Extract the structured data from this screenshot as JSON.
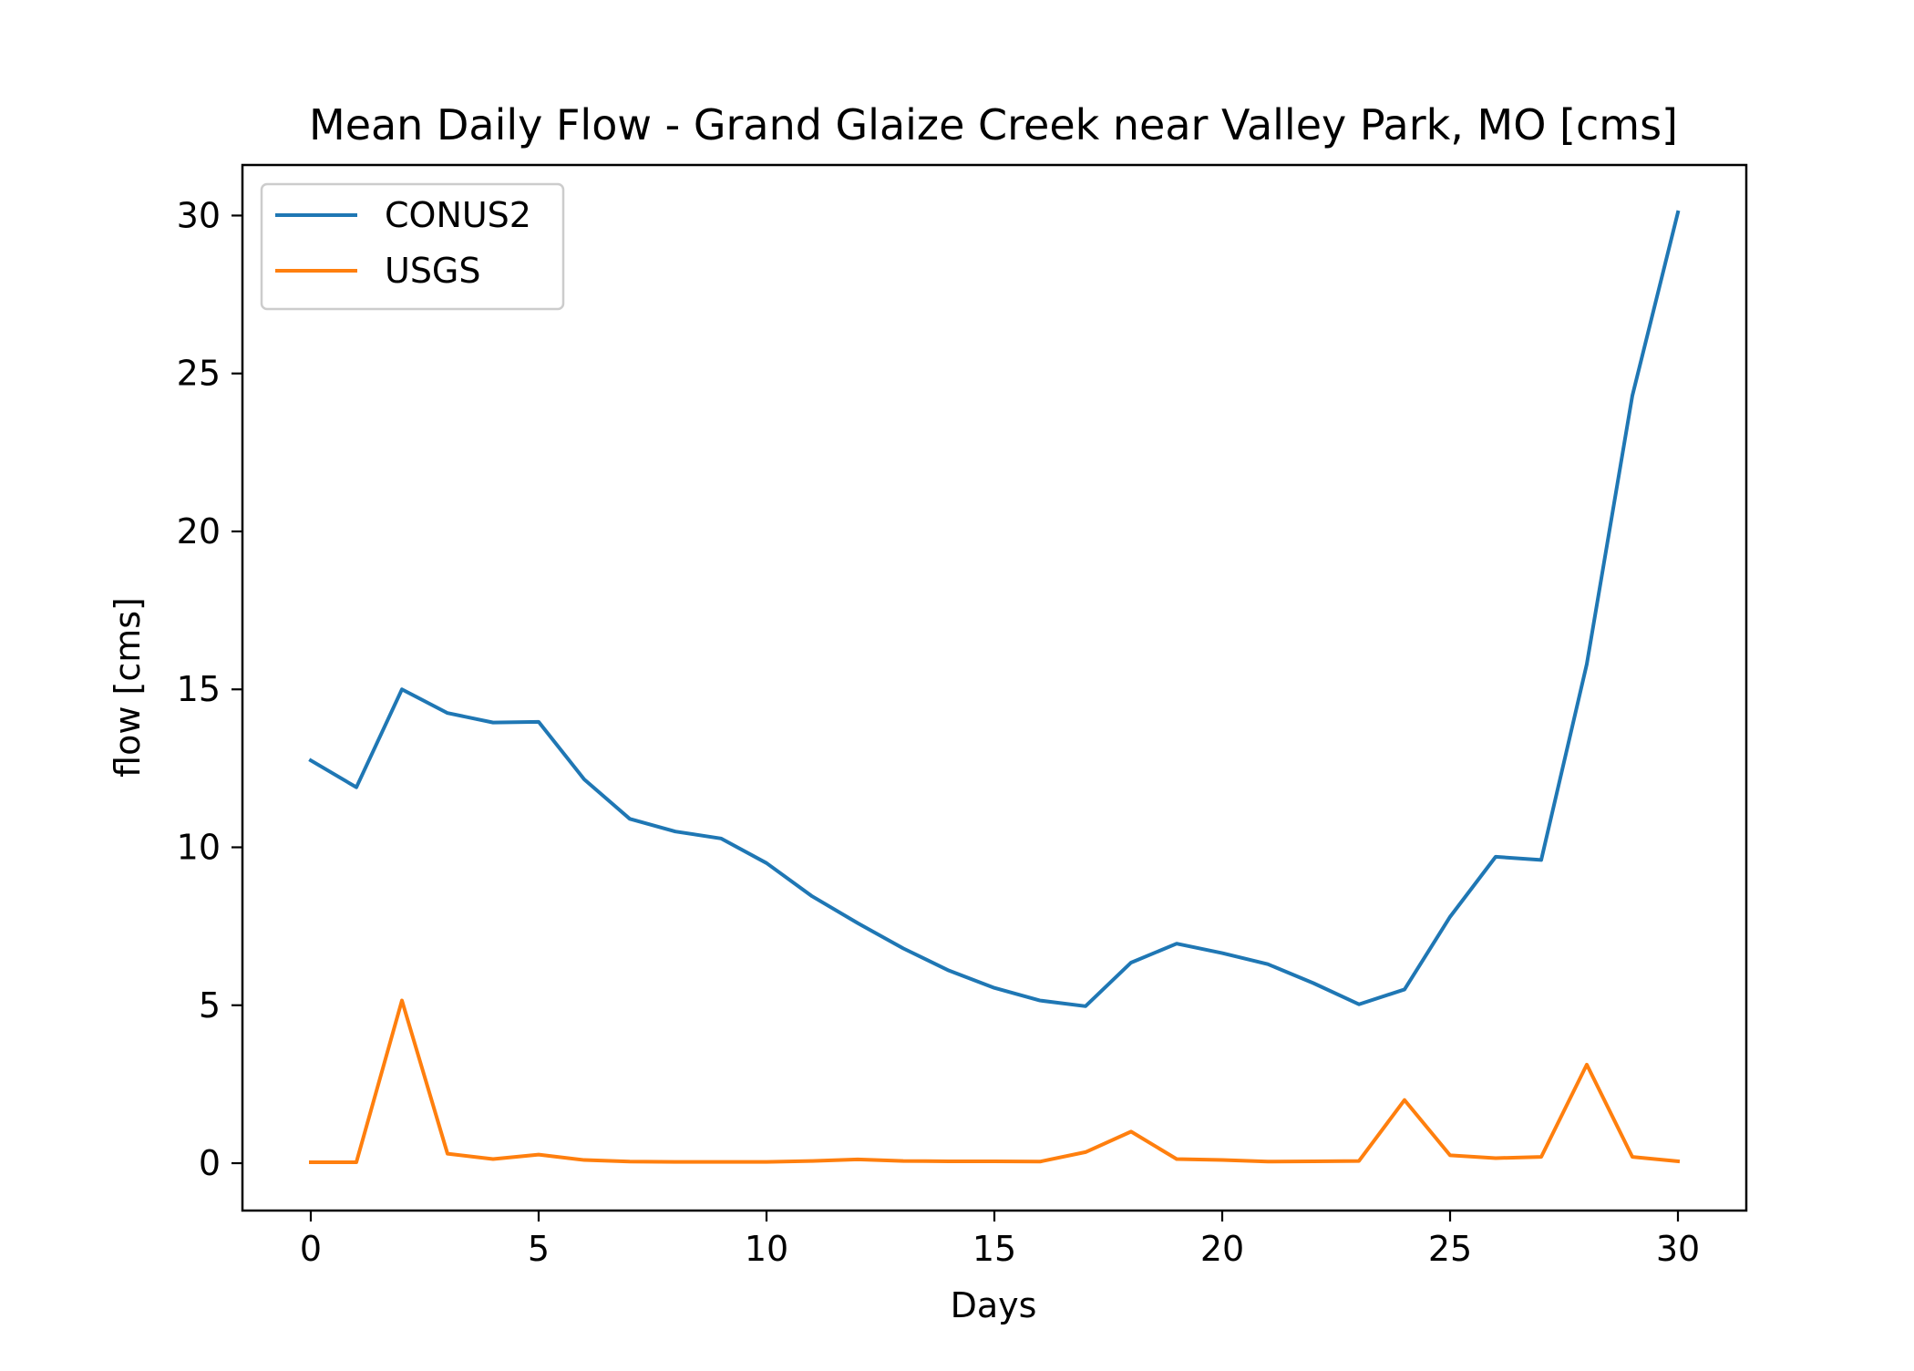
{
  "chart_data": {
    "type": "line",
    "title": "Mean Daily Flow - Grand Glaize Creek near Valley Park, MO [cms]",
    "xlabel": "Days",
    "ylabel": "flow [cms]",
    "xlim": [
      -1.5,
      31.5
    ],
    "ylim": [
      -1.5,
      31.6
    ],
    "xticks": [
      0,
      5,
      10,
      15,
      20,
      25,
      30
    ],
    "yticks": [
      0,
      5,
      10,
      15,
      20,
      25,
      30
    ],
    "grid": false,
    "legend_position": "upper left",
    "x": [
      0,
      1,
      2,
      3,
      4,
      5,
      6,
      7,
      8,
      9,
      10,
      11,
      12,
      13,
      14,
      15,
      16,
      17,
      18,
      19,
      20,
      21,
      22,
      23,
      24,
      25,
      26,
      27,
      28,
      29,
      30
    ],
    "series": [
      {
        "name": "CONUS2",
        "color": "#1f77b4",
        "values": [
          12.75,
          11.9,
          15.0,
          14.25,
          13.95,
          13.97,
          12.15,
          10.9,
          10.5,
          10.28,
          9.5,
          8.45,
          7.6,
          6.8,
          6.1,
          5.55,
          5.15,
          4.97,
          6.35,
          6.95,
          6.65,
          6.3,
          5.7,
          5.03,
          5.5,
          7.8,
          9.7,
          9.6,
          15.8,
          24.3,
          30.1
        ]
      },
      {
        "name": "USGS",
        "color": "#ff7f0e",
        "values": [
          0.03,
          0.03,
          5.15,
          0.3,
          0.13,
          0.27,
          0.1,
          0.05,
          0.04,
          0.04,
          0.04,
          0.07,
          0.12,
          0.07,
          0.06,
          0.06,
          0.05,
          0.35,
          1.0,
          0.13,
          0.1,
          0.05,
          0.06,
          0.07,
          2.0,
          0.25,
          0.16,
          0.2,
          3.12,
          0.2,
          0.06
        ]
      }
    ]
  }
}
